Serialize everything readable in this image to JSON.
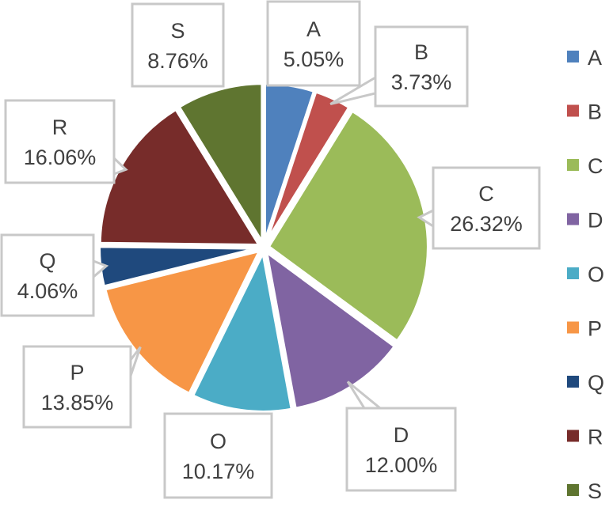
{
  "chart_data": {
    "type": "pie",
    "categories": [
      "A",
      "B",
      "C",
      "D",
      "O",
      "P",
      "Q",
      "R",
      "S"
    ],
    "values": [
      5.05,
      3.73,
      26.32,
      12.0,
      10.17,
      13.85,
      4.06,
      16.06,
      8.76
    ],
    "value_labels": [
      "5.05%",
      "3.73%",
      "26.32%",
      "12.00%",
      "10.17%",
      "13.85%",
      "4.06%",
      "16.06%",
      "8.76%"
    ],
    "colors": [
      "#4f81bd",
      "#c0504d",
      "#9bbb59",
      "#8064a2",
      "#4bacc6",
      "#f79646",
      "#1f497d",
      "#772c2a",
      "#5f7530"
    ],
    "legend": {
      "position": "right",
      "entries": [
        "A",
        "B",
        "C",
        "D",
        "O",
        "P",
        "Q",
        "R",
        "S"
      ]
    },
    "data_labels": "callouts with category name and percentage"
  }
}
